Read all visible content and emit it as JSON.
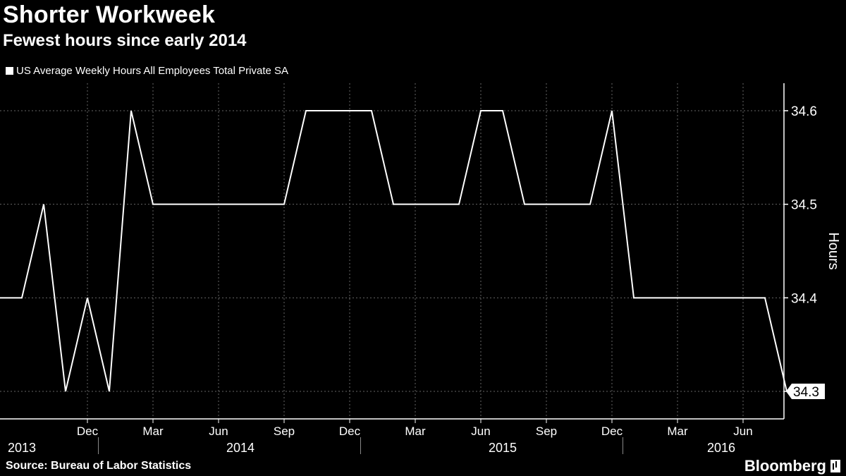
{
  "title": "Shorter Workweek",
  "subtitle": "Fewest hours since early 2014",
  "source": "Source: Bureau of Labor Statistics",
  "brand": "Bloomberg",
  "chart_data": {
    "type": "line",
    "title": "Shorter Workweek",
    "subtitle": "Fewest hours since early 2014",
    "ylabel": "Hours",
    "ylim": [
      34.27,
      34.63
    ],
    "yticks": [
      34.3,
      34.4,
      34.5,
      34.6
    ],
    "last_value_label": "34.3",
    "x_month_ticks": [
      {
        "label": "Dec",
        "date": "2013-12"
      },
      {
        "label": "Mar",
        "date": "2014-03"
      },
      {
        "label": "Jun",
        "date": "2014-06"
      },
      {
        "label": "Sep",
        "date": "2014-09"
      },
      {
        "label": "Dec",
        "date": "2014-12"
      },
      {
        "label": "Mar",
        "date": "2015-03"
      },
      {
        "label": "Jun",
        "date": "2015-06"
      },
      {
        "label": "Sep",
        "date": "2015-09"
      },
      {
        "label": "Dec",
        "date": "2015-12"
      },
      {
        "label": "Mar",
        "date": "2016-03"
      },
      {
        "label": "Jun",
        "date": "2016-06"
      }
    ],
    "x_year_labels": [
      {
        "label": "2013",
        "date": "2013-09"
      },
      {
        "label": "2014",
        "date": "2014-07"
      },
      {
        "label": "2015",
        "date": "2015-07"
      },
      {
        "label": "2016",
        "date": "2016-05"
      }
    ],
    "grid": true,
    "legend_position": "top-left",
    "colors": {
      "background": "#000000",
      "line": "#ffffff",
      "grid": "#666666"
    },
    "series": [
      {
        "name": "US Average Weekly Hours All Employees Total Private SA",
        "x": [
          "2013-08",
          "2013-09",
          "2013-10",
          "2013-11",
          "2013-12",
          "2014-01",
          "2014-02",
          "2014-03",
          "2014-04",
          "2014-05",
          "2014-06",
          "2014-07",
          "2014-08",
          "2014-09",
          "2014-10",
          "2014-11",
          "2014-12",
          "2015-01",
          "2015-02",
          "2015-03",
          "2015-04",
          "2015-05",
          "2015-06",
          "2015-07",
          "2015-08",
          "2015-09",
          "2015-10",
          "2015-11",
          "2015-12",
          "2016-01",
          "2016-02",
          "2016-03",
          "2016-04",
          "2016-05",
          "2016-06",
          "2016-07",
          "2016-08"
        ],
        "values": [
          34.4,
          34.4,
          34.5,
          34.3,
          34.4,
          34.3,
          34.6,
          34.5,
          34.5,
          34.5,
          34.5,
          34.5,
          34.5,
          34.5,
          34.6,
          34.6,
          34.6,
          34.6,
          34.5,
          34.5,
          34.5,
          34.5,
          34.6,
          34.6,
          34.5,
          34.5,
          34.5,
          34.5,
          34.6,
          34.4,
          34.4,
          34.4,
          34.4,
          34.4,
          34.4,
          34.4,
          34.3
        ]
      }
    ]
  }
}
